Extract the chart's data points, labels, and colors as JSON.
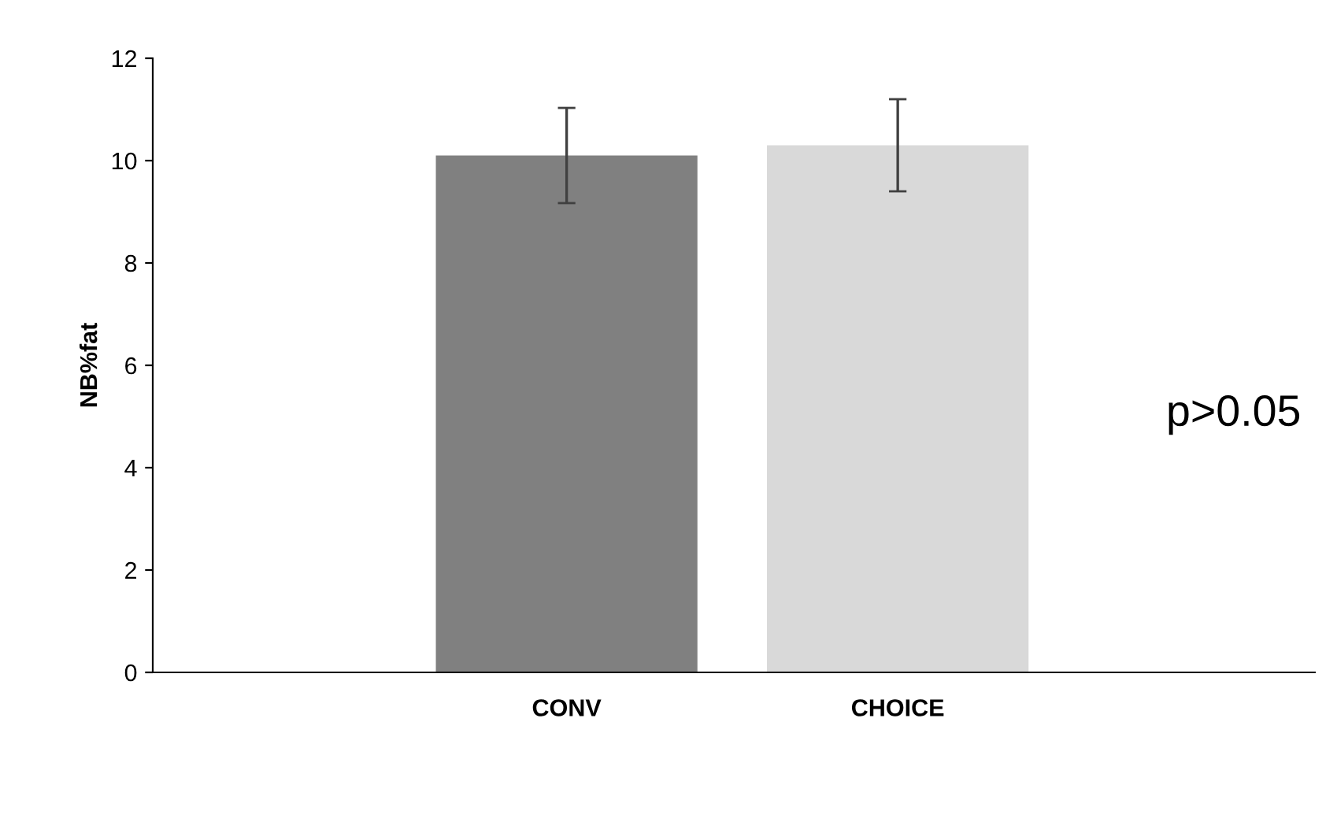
{
  "chart_data": {
    "type": "bar",
    "ylabel": "NB%fat",
    "categories": [
      "CONV",
      "CHOICE"
    ],
    "values": [
      10.1,
      10.3
    ],
    "colors": [
      "#808080",
      "#d9d9d9"
    ],
    "errors": [
      0.93,
      0.9
    ],
    "ylim": [
      0,
      12
    ],
    "yticks": [
      0,
      2,
      4,
      6,
      8,
      10,
      12
    ],
    "grid": false,
    "legend": false,
    "annotations": [
      "p>0.05"
    ]
  }
}
